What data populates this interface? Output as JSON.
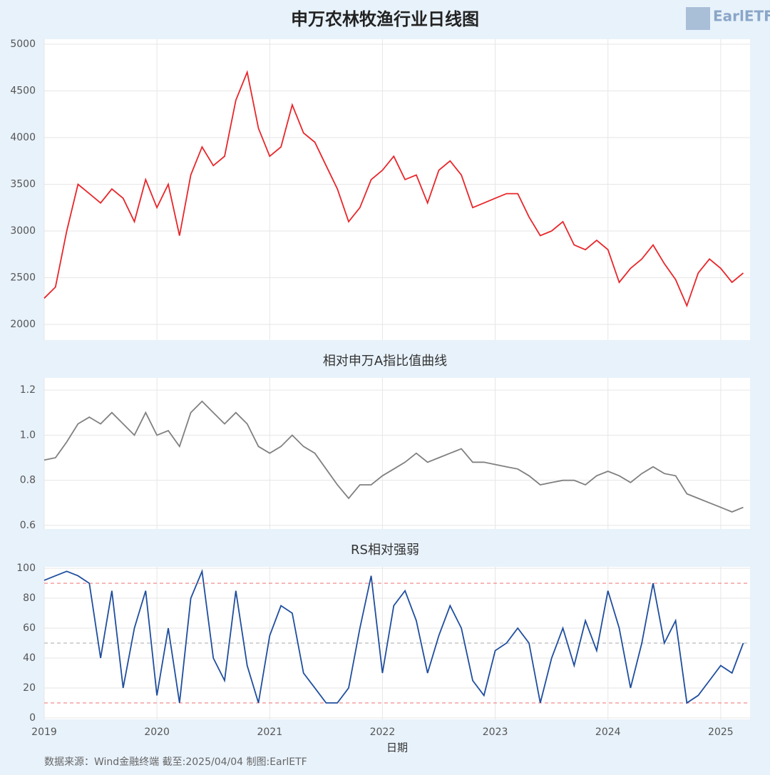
{
  "chart_data": [
    {
      "type": "line",
      "title": "申万农林牧渔行业日线图",
      "x": [
        2019.0,
        2019.1,
        2019.2,
        2019.3,
        2019.4,
        2019.5,
        2019.6,
        2019.7,
        2019.8,
        2019.9,
        2020.0,
        2020.1,
        2020.2,
        2020.3,
        2020.4,
        2020.5,
        2020.6,
        2020.7,
        2020.8,
        2020.9,
        2021.0,
        2021.1,
        2021.2,
        2021.3,
        2021.4,
        2021.5,
        2021.6,
        2021.7,
        2021.8,
        2021.9,
        2022.0,
        2022.1,
        2022.2,
        2022.3,
        2022.4,
        2022.5,
        2022.6,
        2022.7,
        2022.8,
        2022.9,
        2023.0,
        2023.1,
        2023.2,
        2023.3,
        2023.4,
        2023.5,
        2023.6,
        2023.7,
        2023.8,
        2023.9,
        2024.0,
        2024.1,
        2024.2,
        2024.3,
        2024.4,
        2024.5,
        2024.6,
        2024.7,
        2024.8,
        2024.9,
        2025.0,
        2025.1,
        2025.2
      ],
      "series": [
        {
          "color": "#e8262a",
          "values": [
            2280,
            2400,
            3000,
            3500,
            3400,
            3300,
            3450,
            3350,
            3100,
            3550,
            3250,
            3500,
            2950,
            3600,
            3900,
            3700,
            3800,
            4400,
            4700,
            4100,
            3800,
            3900,
            4350,
            4050,
            3950,
            3700,
            3450,
            3100,
            3250,
            3550,
            3650,
            3800,
            3550,
            3600,
            3300,
            3650,
            3750,
            3600,
            3250,
            3300,
            3350,
            3400,
            3400,
            3150,
            2950,
            3000,
            3100,
            2850,
            2800,
            2900,
            2800,
            2450,
            2600,
            2700,
            2850,
            2650,
            2480,
            2200,
            2550,
            2700,
            2600,
            2450,
            2550
          ]
        }
      ],
      "xlim": [
        2019,
        2025.26
      ],
      "xticks": [
        2019,
        2020,
        2021,
        2022,
        2023,
        2024,
        2025
      ],
      "ylim": [
        1832,
        5053
      ],
      "yticks": [
        2000,
        2500,
        3000,
        3500,
        4000,
        4500,
        5000
      ],
      "grid": true
    },
    {
      "type": "line",
      "title": "相对申万A指比值曲线",
      "x": [
        2019.0,
        2019.1,
        2019.2,
        2019.3,
        2019.4,
        2019.5,
        2019.6,
        2019.7,
        2019.8,
        2019.9,
        2020.0,
        2020.1,
        2020.2,
        2020.3,
        2020.4,
        2020.5,
        2020.6,
        2020.7,
        2020.8,
        2020.9,
        2021.0,
        2021.1,
        2021.2,
        2021.3,
        2021.4,
        2021.5,
        2021.6,
        2021.7,
        2021.8,
        2021.9,
        2022.0,
        2022.1,
        2022.2,
        2022.3,
        2022.4,
        2022.5,
        2022.6,
        2022.7,
        2022.8,
        2022.9,
        2023.0,
        2023.1,
        2023.2,
        2023.3,
        2023.4,
        2023.5,
        2023.6,
        2023.7,
        2023.8,
        2023.9,
        2024.0,
        2024.1,
        2024.2,
        2024.3,
        2024.4,
        2024.5,
        2024.6,
        2024.7,
        2024.8,
        2024.9,
        2025.0,
        2025.1,
        2025.2
      ],
      "series": [
        {
          "color": "#808080",
          "values": [
            0.89,
            0.9,
            0.97,
            1.05,
            1.08,
            1.05,
            1.1,
            1.05,
            1.0,
            1.1,
            1.0,
            1.02,
            0.95,
            1.1,
            1.15,
            1.1,
            1.05,
            1.1,
            1.05,
            0.95,
            0.92,
            0.95,
            1.0,
            0.95,
            0.92,
            0.85,
            0.78,
            0.72,
            0.78,
            0.78,
            0.82,
            0.85,
            0.88,
            0.92,
            0.88,
            0.9,
            0.92,
            0.94,
            0.88,
            0.88,
            0.87,
            0.86,
            0.85,
            0.82,
            0.78,
            0.79,
            0.8,
            0.8,
            0.78,
            0.82,
            0.84,
            0.82,
            0.79,
            0.83,
            0.86,
            0.83,
            0.82,
            0.74,
            0.72,
            0.7,
            0.68,
            0.66,
            0.68
          ]
        }
      ],
      "xlim": [
        2019,
        2025.26
      ],
      "xticks": [
        2019,
        2020,
        2021,
        2022,
        2023,
        2024,
        2025
      ],
      "ylim": [
        0.584,
        1.254
      ],
      "yticks": [
        0.6,
        0.8,
        {
          "value": 1,
          "label": "1.0"
        },
        1.2
      ],
      "grid": true
    },
    {
      "type": "line",
      "title": "RS相对强弱",
      "xlabel": "日期",
      "x": [
        2019.0,
        2019.1,
        2019.2,
        2019.3,
        2019.4,
        2019.5,
        2019.6,
        2019.7,
        2019.8,
        2019.9,
        2020.0,
        2020.1,
        2020.2,
        2020.3,
        2020.4,
        2020.5,
        2020.6,
        2020.7,
        2020.8,
        2020.9,
        2021.0,
        2021.1,
        2021.2,
        2021.3,
        2021.4,
        2021.5,
        2021.6,
        2021.7,
        2021.8,
        2021.9,
        2022.0,
        2022.1,
        2022.2,
        2022.3,
        2022.4,
        2022.5,
        2022.6,
        2022.7,
        2022.8,
        2022.9,
        2023.0,
        2023.1,
        2023.2,
        2023.3,
        2023.4,
        2023.5,
        2023.6,
        2023.7,
        2023.8,
        2023.9,
        2024.0,
        2024.1,
        2024.2,
        2024.3,
        2024.4,
        2024.5,
        2024.6,
        2024.7,
        2024.8,
        2024.9,
        2025.0,
        2025.1,
        2025.2
      ],
      "series": [
        {
          "color": "#1f4e9e",
          "values": [
            92,
            95,
            98,
            95,
            90,
            40,
            85,
            20,
            60,
            85,
            15,
            60,
            10,
            80,
            98,
            40,
            25,
            85,
            35,
            10,
            55,
            75,
            70,
            30,
            20,
            10,
            10,
            20,
            60,
            95,
            30,
            75,
            85,
            65,
            30,
            55,
            75,
            60,
            25,
            15,
            45,
            50,
            60,
            50,
            10,
            40,
            60,
            35,
            65,
            45,
            85,
            60,
            20,
            50,
            90,
            50,
            65,
            10,
            15,
            25,
            35,
            30,
            50
          ]
        }
      ],
      "xlim": [
        2019,
        2025.26
      ],
      "xticks": [
        2019,
        2020,
        2021,
        2022,
        2023,
        2024,
        2025
      ],
      "ylim": [
        -1,
        101
      ],
      "yticks": [
        0,
        20,
        40,
        60,
        80,
        100
      ],
      "grid": true,
      "reference_lines": [
        {
          "value": 90,
          "color": "#f08080"
        },
        {
          "value": 50,
          "color": "#bbbbbb"
        },
        {
          "value": 10,
          "color": "#f08080"
        }
      ]
    }
  ],
  "source": "数据来源：Wind金融终端 截至:2025/04/04 制图:EarlETF",
  "logo": "EarlETF"
}
